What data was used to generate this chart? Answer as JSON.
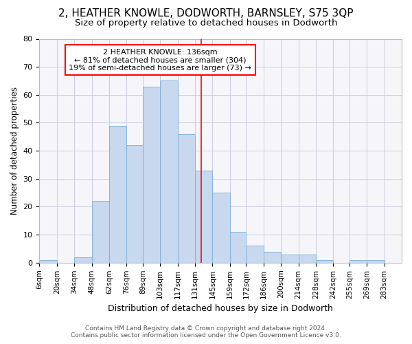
{
  "title": "2, HEATHER KNOWLE, DODWORTH, BARNSLEY, S75 3QP",
  "subtitle": "Size of property relative to detached houses in Dodworth",
  "xlabel": "Distribution of detached houses by size in Dodworth",
  "ylabel": "Number of detached properties",
  "footer_line1": "Contains HM Land Registry data © Crown copyright and database right 2024.",
  "footer_line2": "Contains public sector information licensed under the Open Government Licence v3.0.",
  "bar_color": "#c8d8ee",
  "bar_edgecolor": "#7aafd4",
  "gridcolor": "#ccccdd",
  "background_color": "#ffffff",
  "axes_background": "#f5f5fa",
  "vline_x": 136,
  "vline_color": "red",
  "annotation_text": "2 HEATHER KNOWLE: 136sqm\n← 81% of detached houses are smaller (304)\n19% of semi-detached houses are larger (73) →",
  "annotation_box_edgecolor": "red",
  "annotation_box_facecolor": "white",
  "bins": [
    6,
    20,
    34,
    48,
    62,
    76,
    89,
    103,
    117,
    131,
    145,
    159,
    172,
    186,
    200,
    214,
    228,
    242,
    255,
    269,
    283,
    297
  ],
  "bar_heights": [
    1,
    0,
    2,
    22,
    49,
    42,
    63,
    65,
    46,
    33,
    25,
    11,
    6,
    4,
    3,
    3,
    1,
    0,
    1,
    1,
    0
  ],
  "xlim_left": 6,
  "xlim_right": 297,
  "ylim_top": 80,
  "yticks": [
    0,
    10,
    20,
    30,
    40,
    50,
    60,
    70,
    80
  ],
  "tick_labels": [
    "6sqm",
    "20sqm",
    "34sqm",
    "48sqm",
    "62sqm",
    "76sqm",
    "89sqm",
    "103sqm",
    "117sqm",
    "131sqm",
    "145sqm",
    "159sqm",
    "172sqm",
    "186sqm",
    "200sqm",
    "214sqm",
    "228sqm",
    "242sqm",
    "255sqm",
    "269sqm",
    "283sqm"
  ],
  "title_fontsize": 11,
  "subtitle_fontsize": 9.5,
  "xlabel_fontsize": 9,
  "ylabel_fontsize": 8.5,
  "tick_fontsize": 7.5,
  "ytick_fontsize": 8,
  "annotation_fontsize": 8,
  "footer_fontsize": 6.5
}
